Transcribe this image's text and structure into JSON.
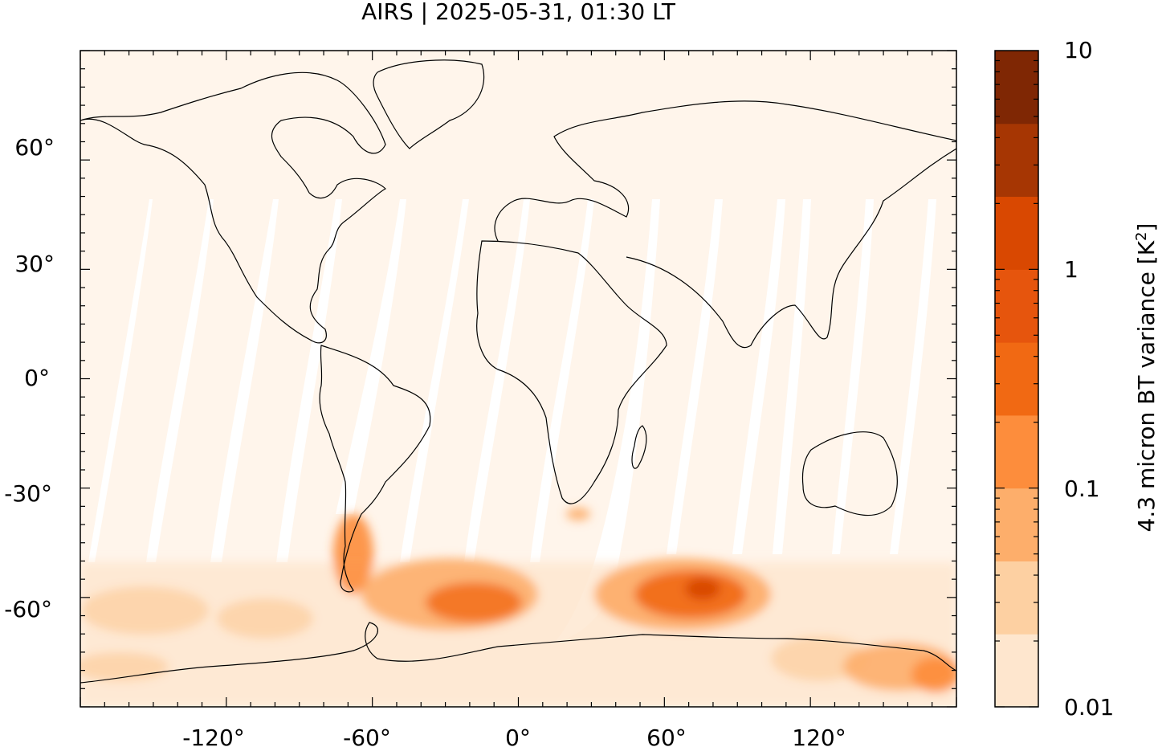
{
  "title": "AIRS | 2025-05-31, 01:30 LT",
  "map": {
    "lon_range": [
      -180,
      180
    ],
    "lat_range": [
      -90,
      90
    ],
    "x_ticks": [
      "-120°",
      "-60°",
      "0°",
      "60°",
      "120°"
    ],
    "y_ticks": [
      "60°",
      "30°",
      "0°",
      "-30°",
      "-60°"
    ],
    "background_color": "#fff5eb",
    "swath_gap_color": "#ffffff",
    "coastline_color": "#000000"
  },
  "colorbar": {
    "label": "4.3 micron BT variance [K",
    "label_sup": "2",
    "label_close": "]",
    "scale": "log",
    "range": [
      0.01,
      10
    ],
    "tick_labels": [
      "10",
      "1",
      "0.1",
      "0.01"
    ],
    "colors": [
      "#fff5eb",
      "#fee6ce",
      "#fdd0a2",
      "#fdae6b",
      "#fd8d3c",
      "#f16913",
      "#e6550d",
      "#d94801",
      "#a63603",
      "#7f2704"
    ]
  }
}
